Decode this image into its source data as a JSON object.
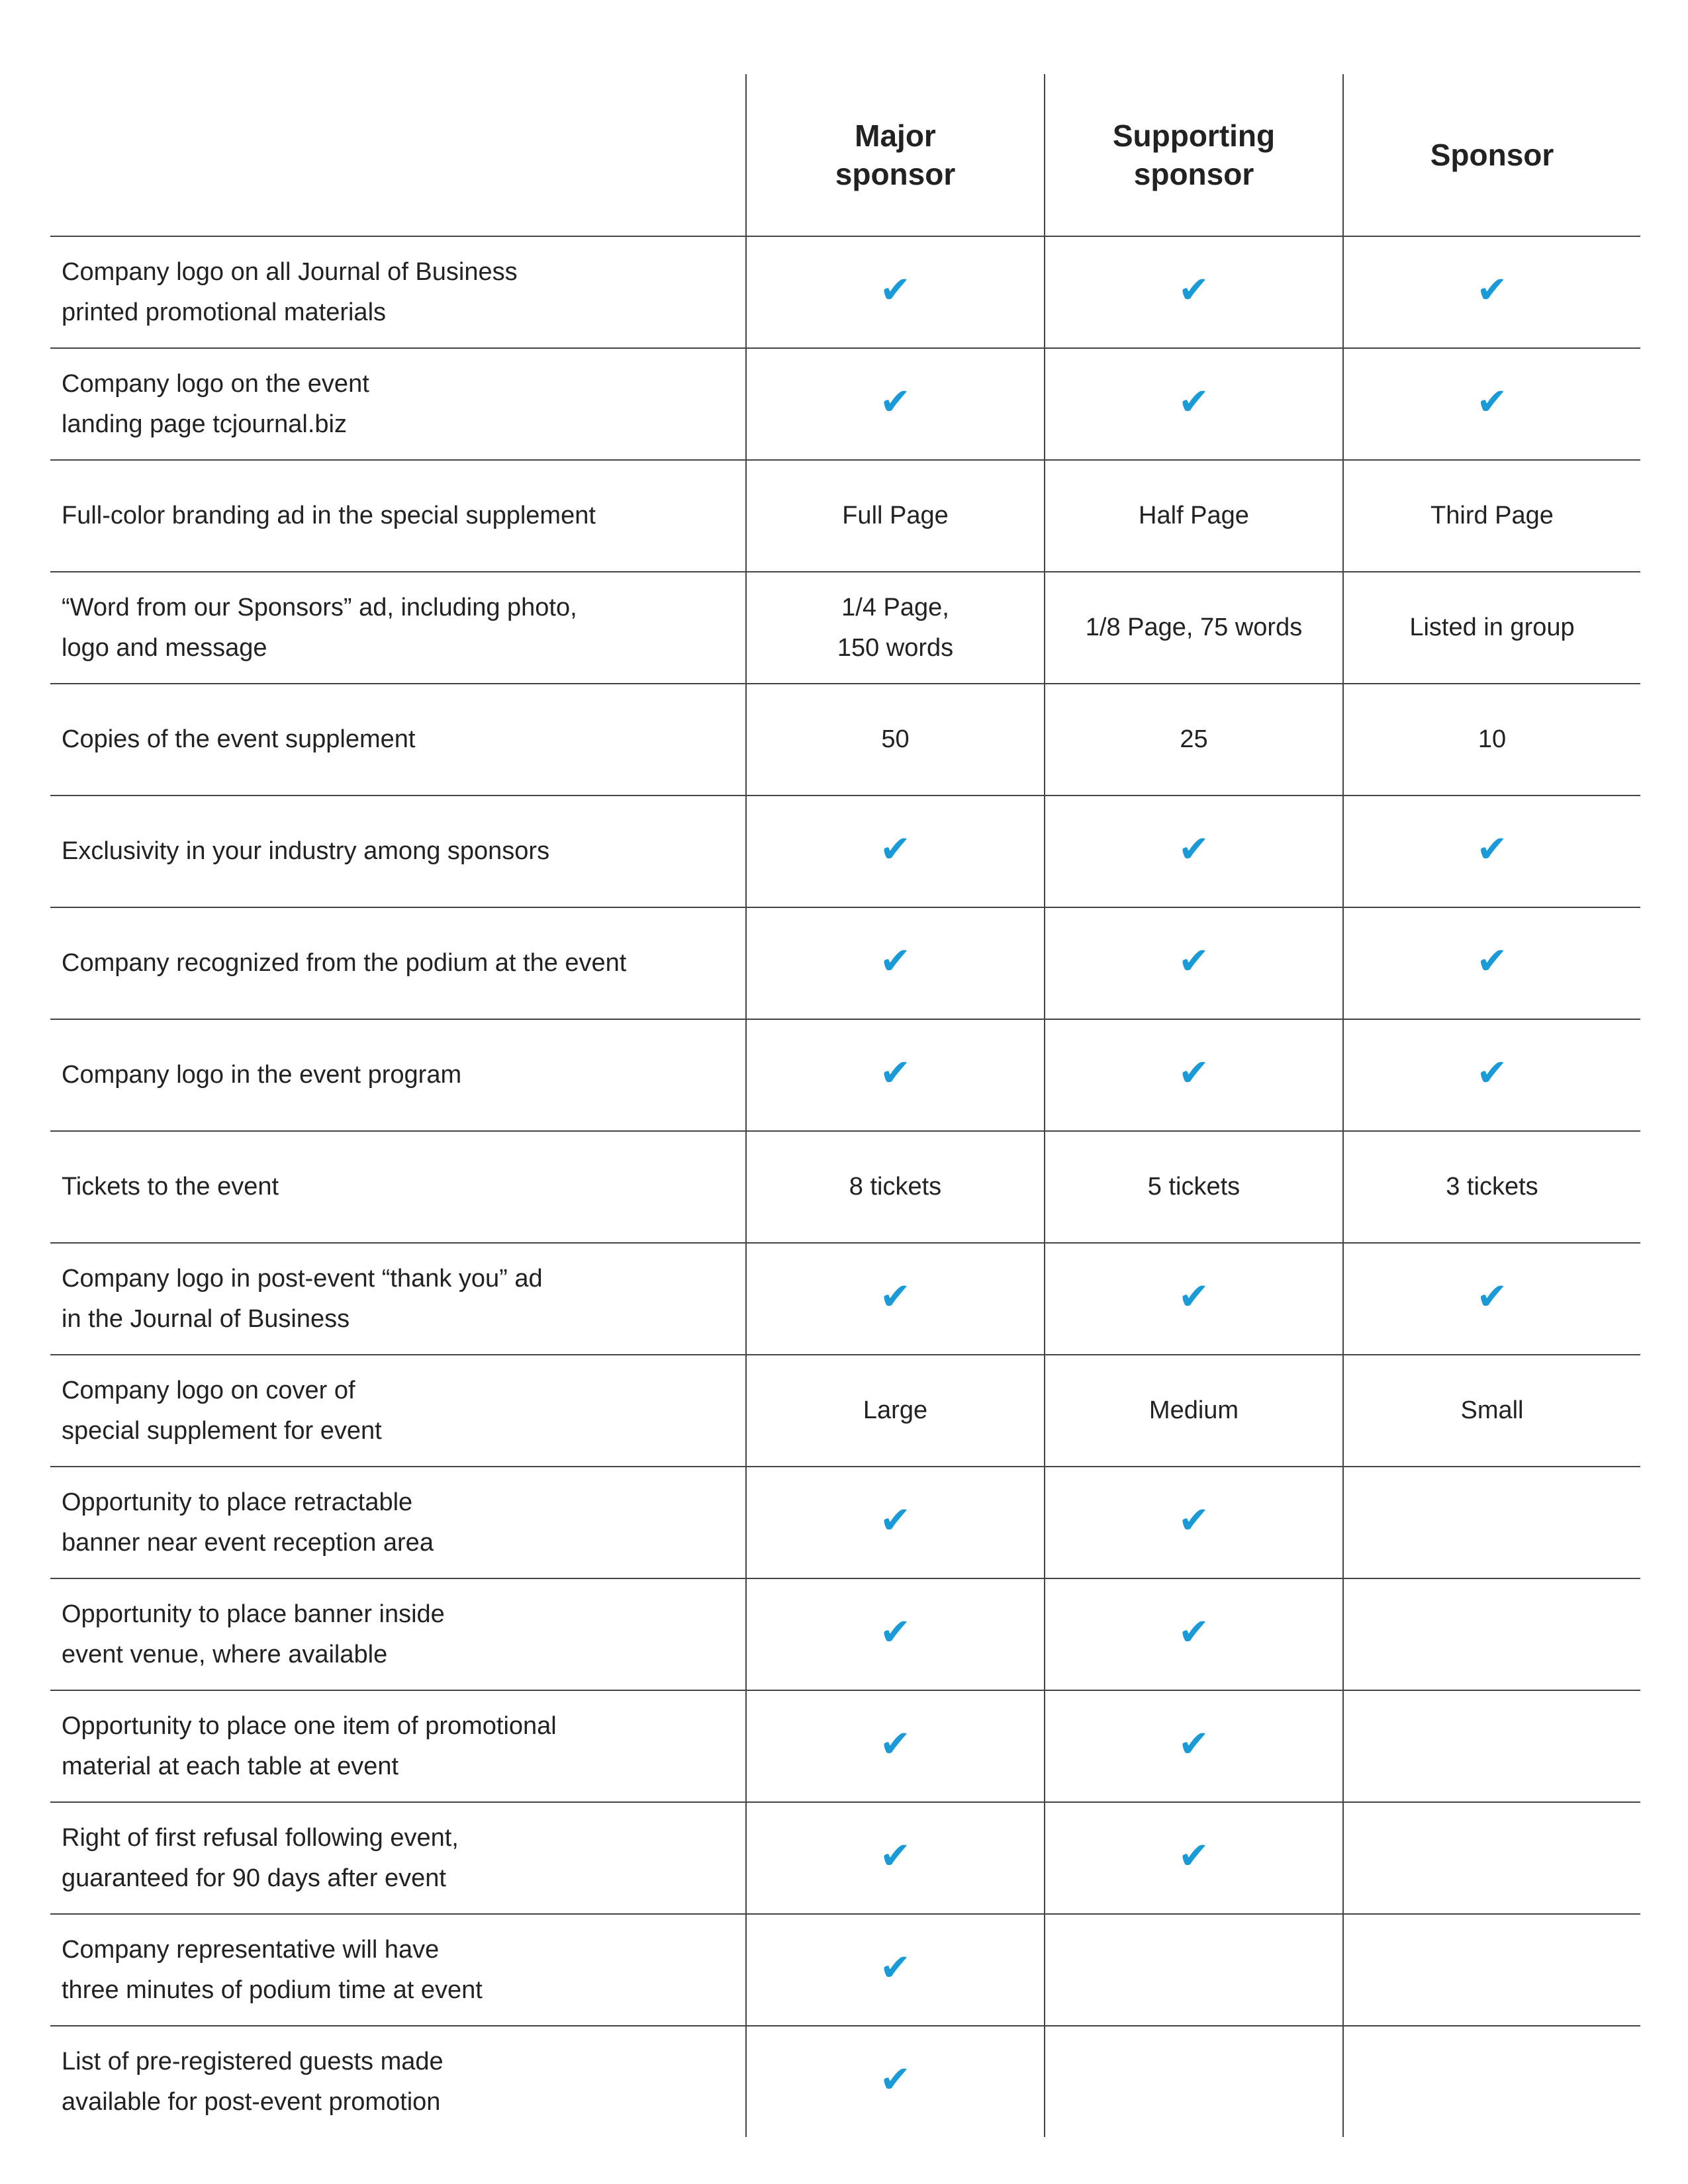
{
  "table": {
    "headers": [
      "Major\nsponsor",
      "Supporting\nsponsor",
      "Sponsor"
    ],
    "rows": [
      [
        "Company logo on all Journal of Business\nprinted promotional materials",
        "✔",
        "✔",
        "✔"
      ],
      [
        "Company logo on the event\nlanding page tcjournal.biz",
        "✔",
        "✔",
        "✔"
      ],
      [
        "Full-color branding ad in the special supplement",
        "Full Page",
        "Half Page",
        "Third Page"
      ],
      [
        "“Word from our Sponsors” ad, including photo,\nlogo and message",
        "1/4 Page,\n150 words",
        "1/8 Page, 75 words",
        "Listed in group"
      ],
      [
        "Copies of the event supplement",
        "50",
        "25",
        "10"
      ],
      [
        "Exclusivity in your industry among sponsors",
        "✔",
        "✔",
        "✔"
      ],
      [
        "Company recognized from the podium at the event",
        "✔",
        "✔",
        "✔"
      ],
      [
        "Company logo in the event program",
        "✔",
        "✔",
        "✔"
      ],
      [
        "Tickets to the event",
        "8 tickets",
        "5 tickets",
        "3 tickets"
      ],
      [
        "Company logo in post-event “thank you” ad\nin the Journal of Business",
        "✔",
        "✔",
        "✔"
      ],
      [
        "Company logo on cover of\nspecial supplement for event",
        "Large",
        "Medium",
        "Small"
      ],
      [
        "Opportunity to place retractable\nbanner near event reception area",
        "✔",
        "✔",
        null
      ],
      [
        "Opportunity to place banner inside\nevent venue, where available",
        "✔",
        "✔",
        null
      ],
      [
        "Opportunity to place one item of promotional\nmaterial at each table at event",
        "✔",
        "✔",
        null
      ],
      [
        "Right of first refusal following event,\nguaranteed for 90 days after event",
        "✔",
        "✔",
        null
      ],
      [
        "Company representative will have\nthree minutes of podium time at event",
        "✔",
        null,
        null
      ],
      [
        "List of pre-registered guests made\navailable for post-event promotion",
        "✔",
        null,
        null
      ]
    ]
  }
}
